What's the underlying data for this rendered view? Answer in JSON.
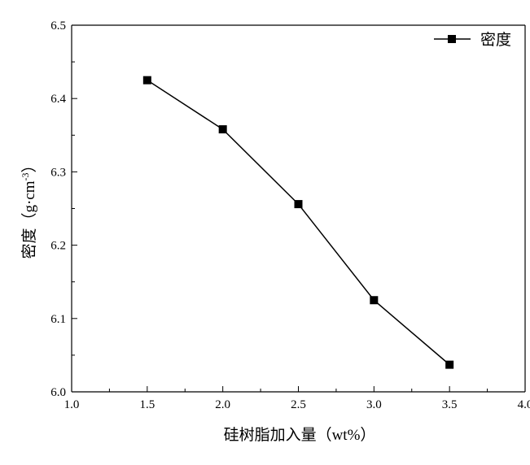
{
  "chart_data": {
    "type": "line",
    "title": "",
    "xlabel": "硅树脂加入量（wt%）",
    "ylabel_main": "密度（g·cm",
    "ylabel_sup": "-3",
    "ylabel_end": "）",
    "xlim": [
      1.0,
      4.0
    ],
    "ylim": [
      6.0,
      6.5
    ],
    "xticks": [
      1.0,
      1.5,
      2.0,
      2.5,
      3.0,
      3.5,
      4.0
    ],
    "xtick_labels": [
      "1.0",
      "1.5",
      "2.0",
      "2.5",
      "3.0",
      "3.5",
      "4.0"
    ],
    "yticks": [
      6.0,
      6.1,
      6.2,
      6.3,
      6.4,
      6.5
    ],
    "ytick_labels": [
      "6.0",
      "6.1",
      "6.2",
      "6.3",
      "6.4",
      "6.5"
    ],
    "grid": false,
    "legend_position": "top-right",
    "series": [
      {
        "name": "密度",
        "color": "#000000",
        "marker": "square",
        "x": [
          1.5,
          2.0,
          2.5,
          3.0,
          3.5
        ],
        "y": [
          6.425,
          6.358,
          6.256,
          6.125,
          6.037
        ]
      }
    ]
  }
}
